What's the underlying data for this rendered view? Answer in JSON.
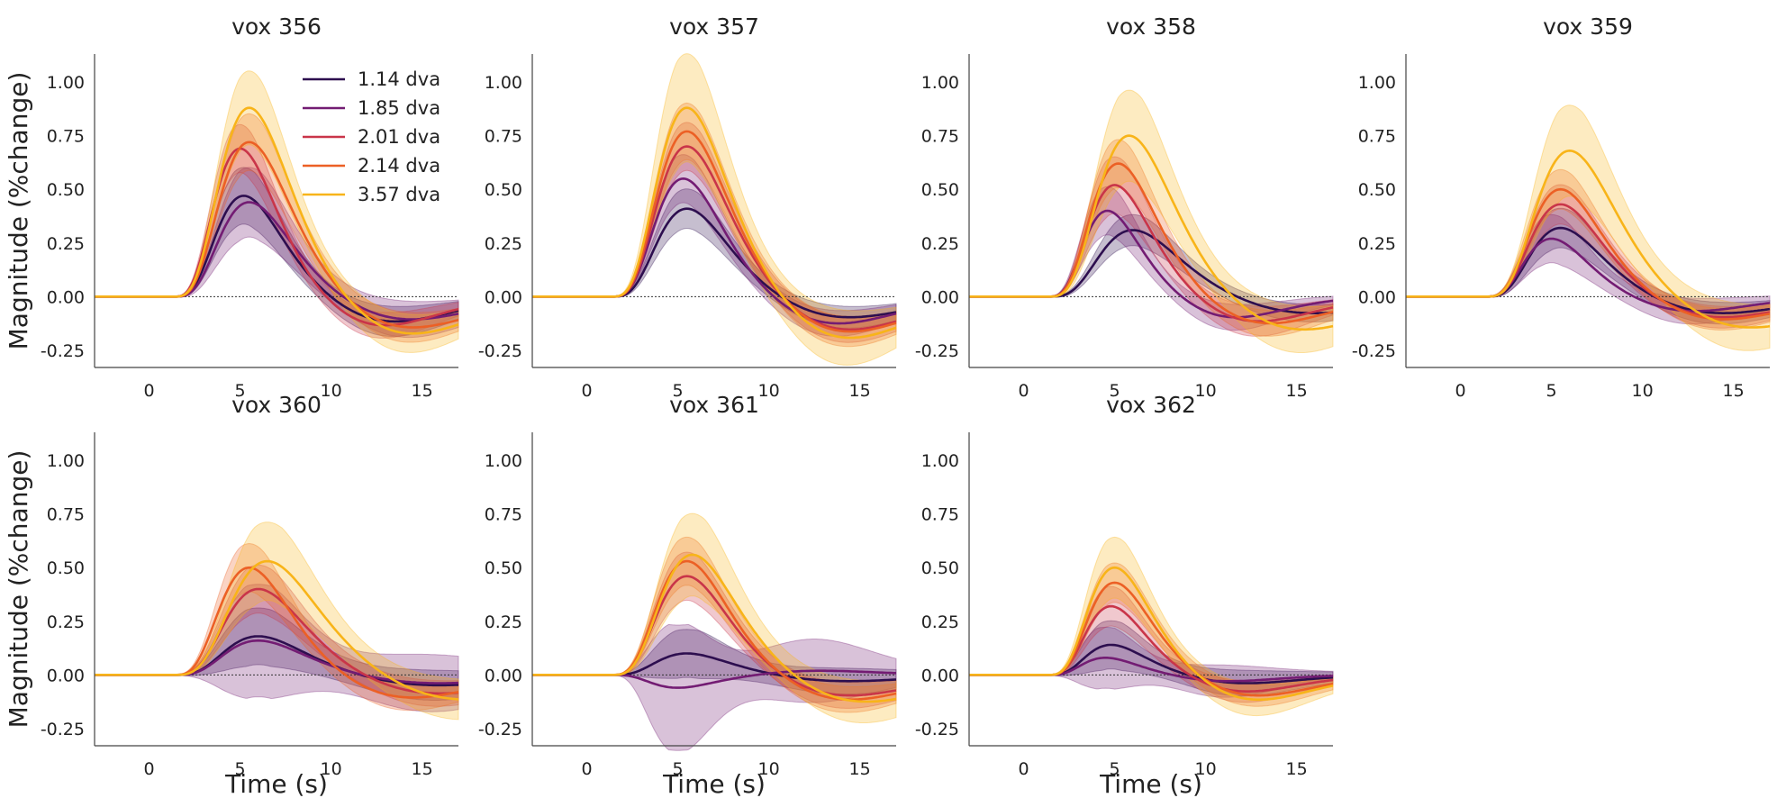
{
  "colors": {
    "1.14 dva": "#2d0e4f",
    "1.85 dva": "#731c73",
    "2.01 dva": "#c93549",
    "2.14 dva": "#ec6025",
    "3.57 dva": "#f8b419",
    "baseline": "#333333",
    "axis": "#444444"
  },
  "chart_data": {
    "type": "line",
    "x_label": "Time (s)",
    "y_label": "Magnitude (%change)",
    "xlim": [
      -3,
      17
    ],
    "ylim": [
      -0.33,
      1.13
    ],
    "xticks": [
      0,
      5,
      10,
      15
    ],
    "yticks": [
      -0.25,
      0.0,
      0.25,
      0.5,
      0.75,
      1.0
    ],
    "ytick_labels": [
      "-0.25",
      "0.00",
      "0.25",
      "0.50",
      "0.75",
      "1.00"
    ],
    "baseline": 0,
    "shaded_band": "mean ± error",
    "legend": {
      "location": "upper-right of first panel",
      "entries": [
        "1.14 dva",
        "1.85 dva",
        "2.01 dva",
        "2.14 dva",
        "3.57 dva"
      ]
    },
    "panels": [
      {
        "title": "vox 356",
        "series": [
          {
            "name": "1.14 dva",
            "peak": 0.47,
            "peak_time": 5.2,
            "undershoot": -0.12,
            "band": 0.12
          },
          {
            "name": "1.85 dva",
            "peak": 0.44,
            "peak_time": 5.5,
            "undershoot": -0.11,
            "band": 0.15
          },
          {
            "name": "2.01 dva",
            "peak": 0.69,
            "peak_time": 5.0,
            "undershoot": -0.14,
            "band": 0.1
          },
          {
            "name": "2.14 dva",
            "peak": 0.72,
            "peak_time": 5.5,
            "undershoot": -0.15,
            "band": 0.12
          },
          {
            "name": "3.57 dva",
            "peak": 0.88,
            "peak_time": 5.5,
            "undershoot": -0.18,
            "band": 0.16
          }
        ]
      },
      {
        "title": "vox 357",
        "series": [
          {
            "name": "1.14 dva",
            "peak": 0.41,
            "peak_time": 5.5,
            "undershoot": -0.1,
            "band": 0.08
          },
          {
            "name": "1.85 dva",
            "peak": 0.55,
            "peak_time": 5.3,
            "undershoot": -0.13,
            "band": 0.1
          },
          {
            "name": "2.01 dva",
            "peak": 0.7,
            "peak_time": 5.5,
            "undershoot": -0.16,
            "band": 0.1
          },
          {
            "name": "2.14 dva",
            "peak": 0.77,
            "peak_time": 5.5,
            "undershoot": -0.17,
            "band": 0.12
          },
          {
            "name": "3.57 dva",
            "peak": 0.88,
            "peak_time": 5.5,
            "undershoot": -0.2,
            "band": 0.24
          }
        ]
      },
      {
        "title": "vox 358",
        "series": [
          {
            "name": "1.14 dva",
            "peak": 0.31,
            "peak_time": 6.0,
            "undershoot": -0.08,
            "band": 0.06
          },
          {
            "name": "1.85 dva",
            "peak": 0.4,
            "peak_time": 4.6,
            "undershoot": -0.1,
            "band": 0.1
          },
          {
            "name": "2.01 dva",
            "peak": 0.52,
            "peak_time": 5.0,
            "undershoot": -0.12,
            "band": 0.12
          },
          {
            "name": "2.14 dva",
            "peak": 0.62,
            "peak_time": 5.2,
            "undershoot": -0.13,
            "band": 0.1
          },
          {
            "name": "3.57 dva",
            "peak": 0.75,
            "peak_time": 5.8,
            "undershoot": -0.16,
            "band": 0.2
          }
        ]
      },
      {
        "title": "vox 359",
        "series": [
          {
            "name": "1.14 dva",
            "peak": 0.32,
            "peak_time": 5.5,
            "undershoot": -0.08,
            "band": 0.08
          },
          {
            "name": "1.85 dva",
            "peak": 0.27,
            "peak_time": 5.0,
            "undershoot": -0.07,
            "band": 0.1
          },
          {
            "name": "2.01 dva",
            "peak": 0.43,
            "peak_time": 5.5,
            "undershoot": -0.1,
            "band": 0.08
          },
          {
            "name": "2.14 dva",
            "peak": 0.5,
            "peak_time": 5.5,
            "undershoot": -0.11,
            "band": 0.08
          },
          {
            "name": "3.57 dva",
            "peak": 0.68,
            "peak_time": 6.0,
            "undershoot": -0.15,
            "band": 0.2
          }
        ]
      },
      {
        "title": "vox 360",
        "series": [
          {
            "name": "1.14 dva",
            "peak": 0.18,
            "peak_time": 6.0,
            "undershoot": -0.05,
            "band": 0.12
          },
          {
            "name": "1.85 dva",
            "peak": 0.16,
            "peak_time": 6.0,
            "undershoot": -0.04,
            "band": 0.25
          },
          {
            "name": "2.01 dva",
            "peak": 0.4,
            "peak_time": 6.0,
            "undershoot": -0.09,
            "band": 0.1
          },
          {
            "name": "2.14 dva",
            "peak": 0.5,
            "peak_time": 5.5,
            "undershoot": -0.11,
            "band": 0.1
          },
          {
            "name": "3.57 dva",
            "peak": 0.53,
            "peak_time": 6.5,
            "undershoot": -0.12,
            "band": 0.17
          }
        ]
      },
      {
        "title": "vox 361",
        "series": [
          {
            "name": "1.14 dva",
            "peak": 0.1,
            "peak_time": 5.5,
            "undershoot": -0.03,
            "band": 0.1
          },
          {
            "name": "1.85 dva",
            "peak": -0.06,
            "peak_time": 5.0,
            "undershoot": 0.02,
            "band": 0.28
          },
          {
            "name": "2.01 dva",
            "peak": 0.46,
            "peak_time": 5.5,
            "undershoot": -0.1,
            "band": 0.1
          },
          {
            "name": "2.14 dva",
            "peak": 0.53,
            "peak_time": 5.5,
            "undershoot": -0.12,
            "band": 0.1
          },
          {
            "name": "3.57 dva",
            "peak": 0.56,
            "peak_time": 5.8,
            "undershoot": -0.13,
            "band": 0.18
          }
        ]
      },
      {
        "title": "vox 362",
        "series": [
          {
            "name": "1.14 dva",
            "peak": 0.14,
            "peak_time": 4.8,
            "undershoot": -0.04,
            "band": 0.1
          },
          {
            "name": "1.85 dva",
            "peak": 0.08,
            "peak_time": 4.5,
            "undershoot": -0.03,
            "band": 0.13
          },
          {
            "name": "2.01 dva",
            "peak": 0.32,
            "peak_time": 4.8,
            "undershoot": -0.08,
            "band": 0.08
          },
          {
            "name": "2.14 dva",
            "peak": 0.43,
            "peak_time": 5.0,
            "undershoot": -0.1,
            "band": 0.08
          },
          {
            "name": "3.57 dva",
            "peak": 0.5,
            "peak_time": 5.0,
            "undershoot": -0.12,
            "band": 0.13
          }
        ]
      }
    ]
  }
}
